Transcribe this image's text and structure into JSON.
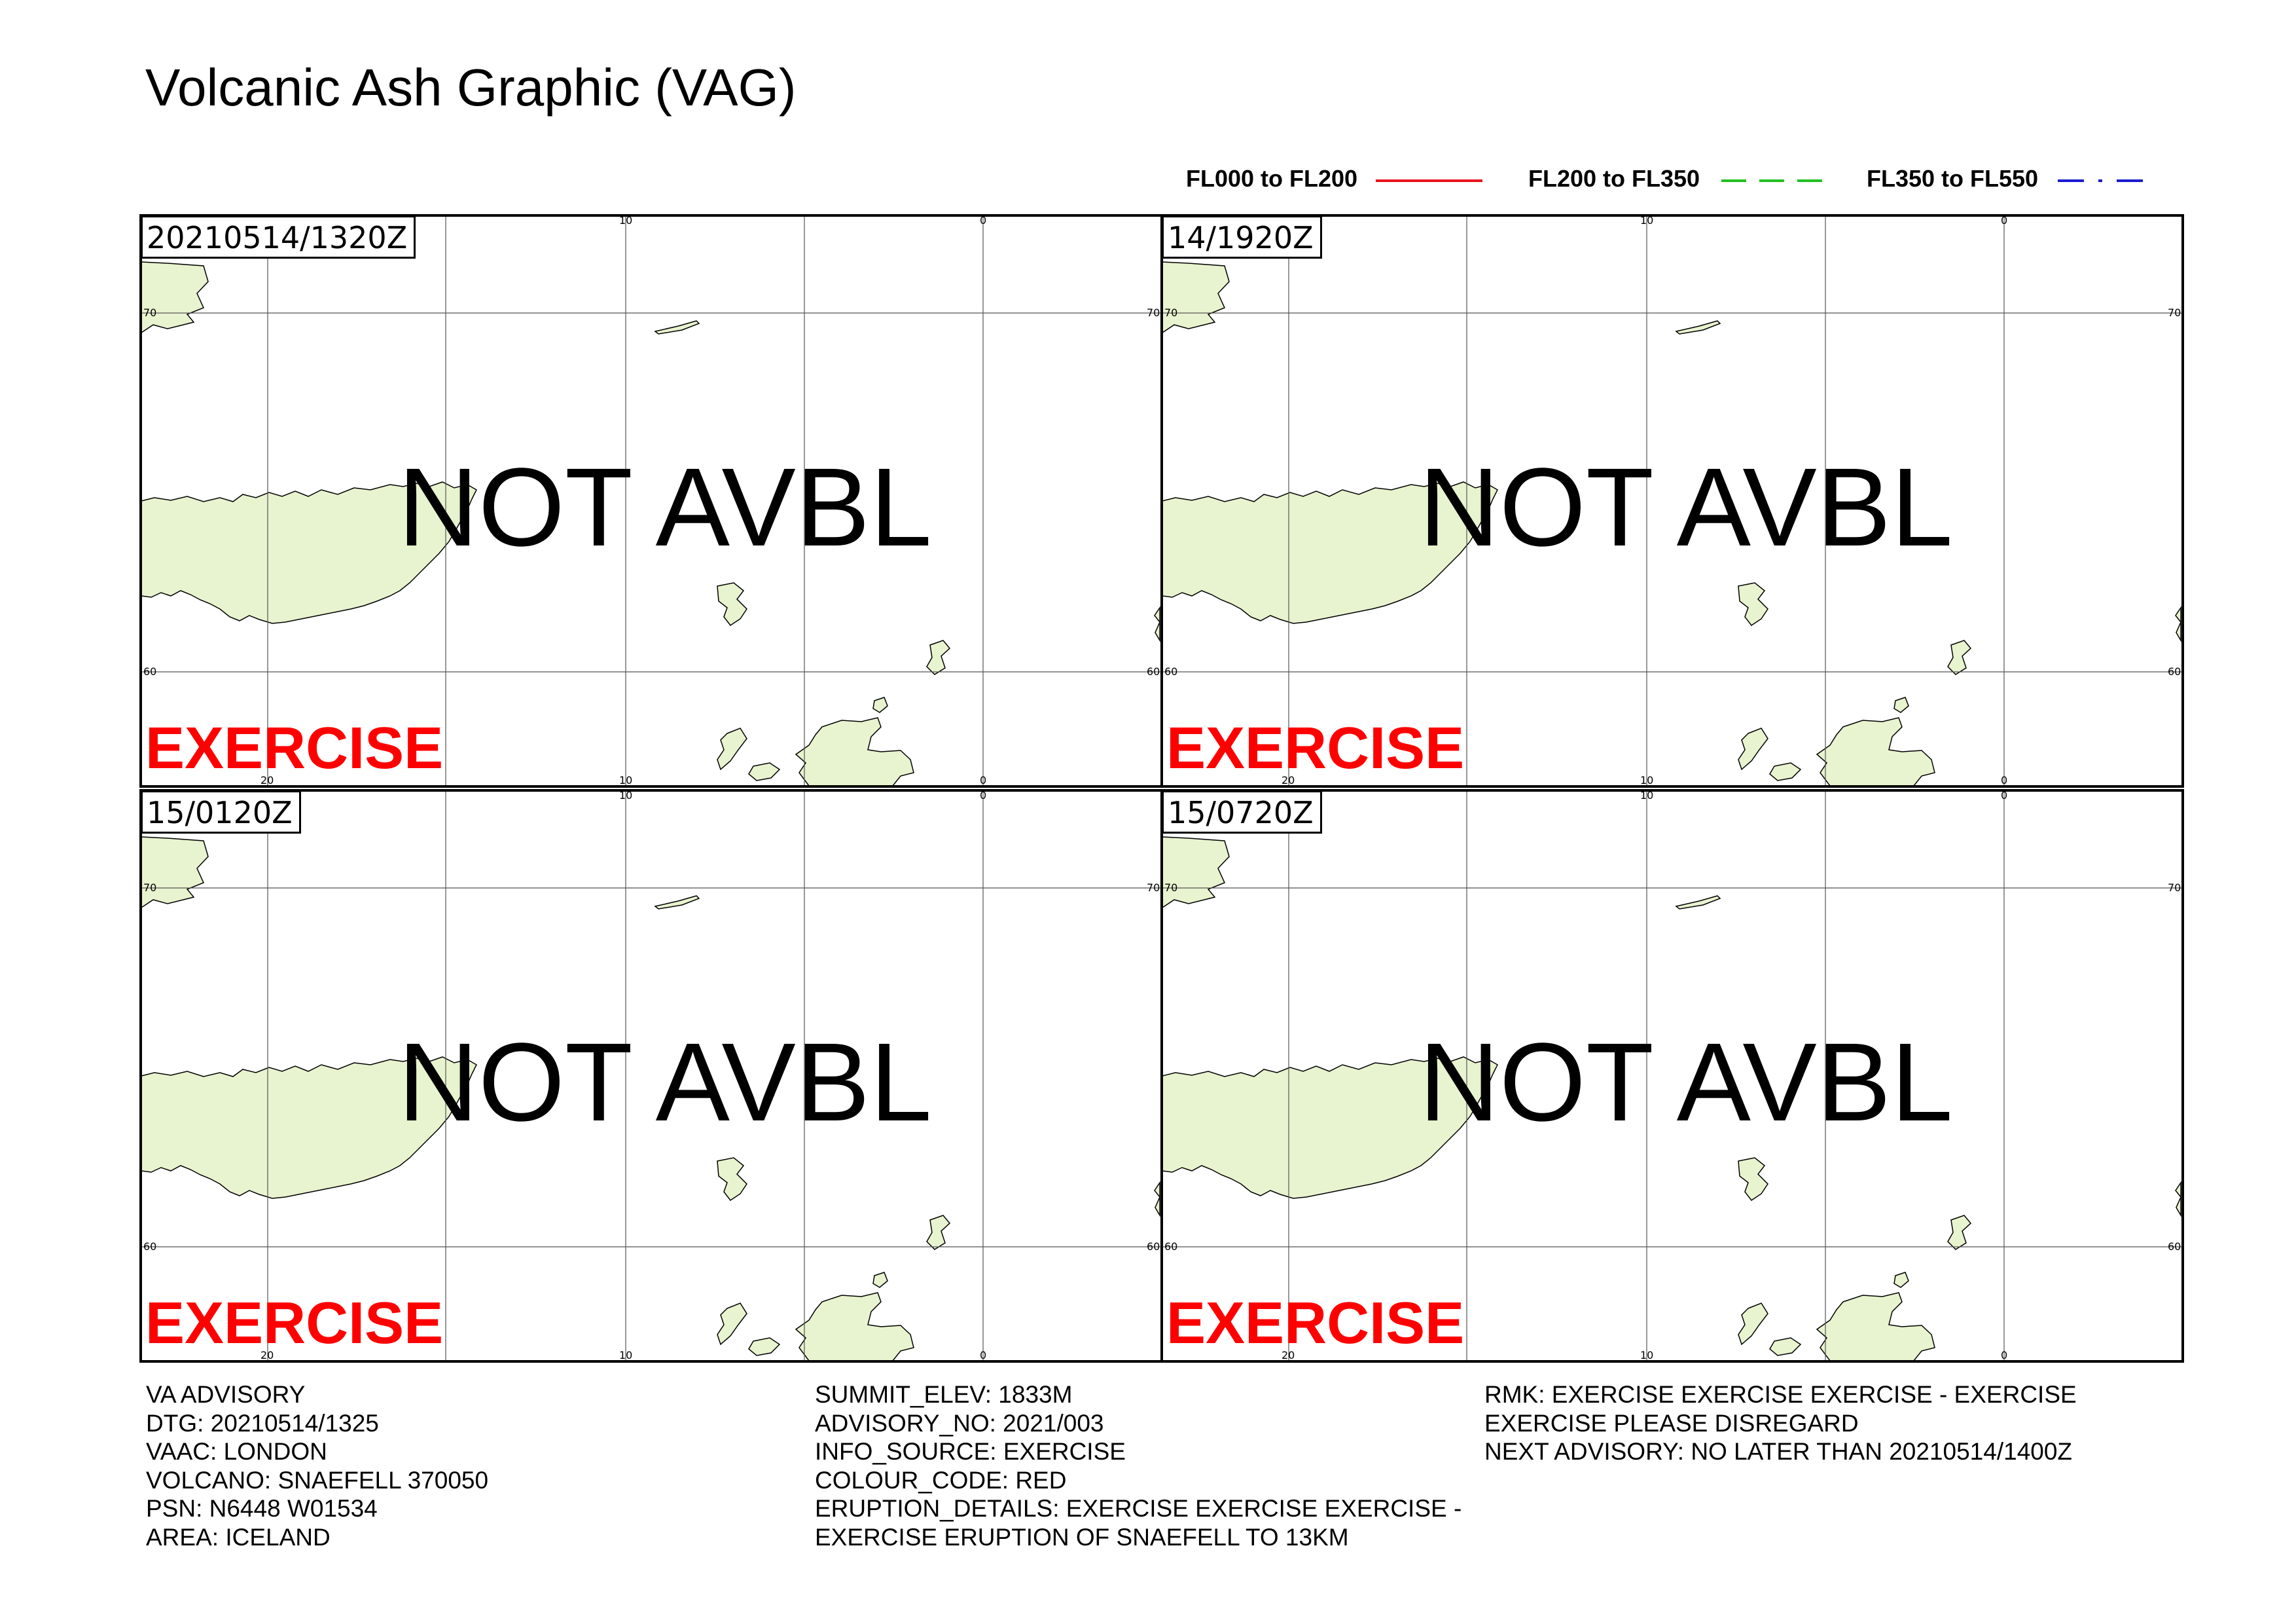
{
  "title": "Volcanic Ash Graphic (VAG)",
  "legend": [
    {
      "label": "FL000 to FL200",
      "color": "#e8141c",
      "style": "solid"
    },
    {
      "label": "FL200 to FL350",
      "color": "#22c022",
      "style": "dashed"
    },
    {
      "label": "FL350 to FL550",
      "color": "#1a1ad0",
      "style": "dashdot"
    }
  ],
  "panels": [
    {
      "time": "20210514/1320Z",
      "status": "NOT AVBL",
      "watermark": "EXERCISE"
    },
    {
      "time": "14/1920Z",
      "status": "NOT AVBL",
      "watermark": "EXERCISE"
    },
    {
      "time": "15/0120Z",
      "status": "NOT AVBL",
      "watermark": "EXERCISE"
    },
    {
      "time": "15/0720Z",
      "status": "NOT AVBL",
      "watermark": "EXERCISE"
    }
  ],
  "grid_labels": {
    "lon_top": [
      "10",
      "0"
    ],
    "lon_bottom": [
      "20",
      "10",
      "0"
    ],
    "lat": [
      "70",
      "60"
    ]
  },
  "colors": {
    "land": "#e8f3cf",
    "exercise": "#ff0000"
  },
  "advisory": {
    "col1": [
      "VA ADVISORY",
      "DTG: 20210514/1325",
      "VAAC: LONDON",
      "VOLCANO: SNAEFELL 370050",
      "PSN: N6448 W01534",
      "AREA: ICELAND"
    ],
    "col2": [
      "SUMMIT_ELEV: 1833M",
      "ADVISORY_NO: 2021/003",
      "INFO_SOURCE: EXERCISE",
      "COLOUR_CODE: RED",
      "ERUPTION_DETAILS: EXERCISE EXERCISE EXERCISE -",
      "EXERCISE ERUPTION OF SNAEFELL TO 13KM"
    ],
    "col3": [
      "RMK: EXERCISE EXERCISE EXERCISE - EXERCISE",
      "EXERCISE PLEASE DISREGARD",
      "NEXT ADVISORY: NO LATER THAN 20210514/1400Z"
    ]
  }
}
